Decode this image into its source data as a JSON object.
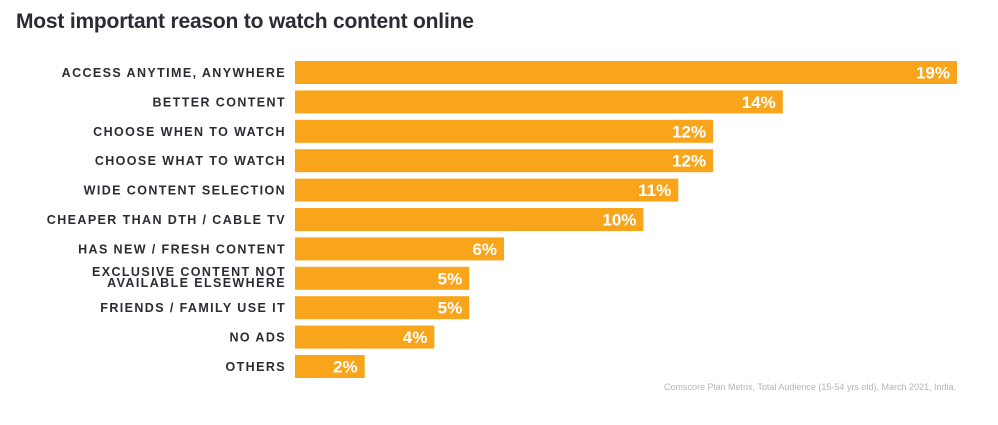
{
  "chart_data": {
    "type": "bar",
    "orientation": "horizontal",
    "title": "Most important reason to watch content online",
    "categories": [
      "ACCESS ANYTIME, ANYWHERE",
      "BETTER CONTENT",
      "CHOOSE WHEN TO WATCH",
      "CHOOSE WHAT TO WATCH",
      "WIDE CONTENT SELECTION",
      "CHEAPER THAN DTH / CABLE TV",
      "HAS NEW / FRESH CONTENT",
      "EXCLUSIVE CONTENT NOT AVAILABLE ELSEWHERE",
      "FRIENDS / FAMILY USE IT",
      "NO ADS",
      "OTHERS"
    ],
    "values": [
      19,
      14,
      12,
      12,
      11,
      10,
      6,
      5,
      5,
      4,
      2
    ],
    "value_labels": [
      "19%",
      "14%",
      "12%",
      "12%",
      "11%",
      "10%",
      "6%",
      "5%",
      "5%",
      "4%",
      "2%"
    ],
    "unit": "%",
    "xlim": [
      0,
      19
    ],
    "grid": false,
    "legend": "none",
    "bar_color": "#f9a51b",
    "source": "Comscore Plan Metrix, Total Audience (15-54 yrs old), March 2021, India."
  }
}
